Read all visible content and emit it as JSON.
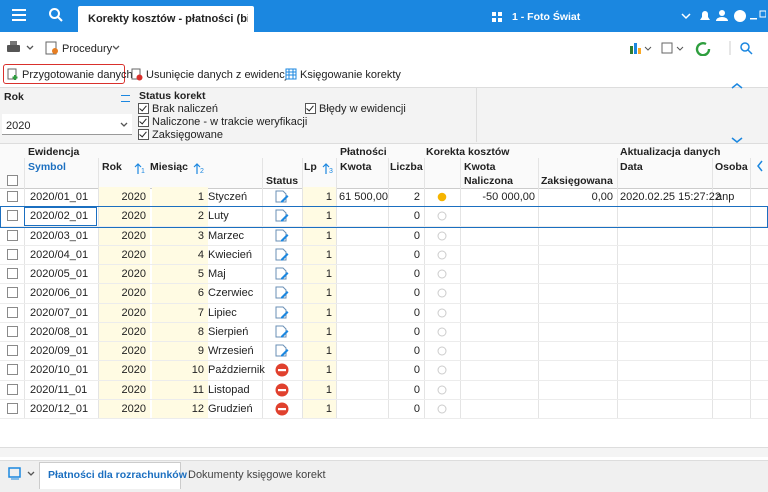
{
  "header": {
    "tab_title": "Korekty kosztów - płatności (biala",
    "company": "1 - Foto Świat"
  },
  "toolbar": {
    "procedures": "Procedury",
    "buttons": [
      "Przygotowanie danych",
      "Usunięcie danych z ewidencji",
      "Księgowanie korekty"
    ]
  },
  "filters": {
    "year_label": "Rok",
    "year_value": "2020",
    "status_label": "Status korekt",
    "status_options": [
      "Brak naliczeń",
      "Naliczone - w trakcie weryfikacji",
      "Zaksięgowane"
    ],
    "errors_option": "Błędy w ewidencji"
  },
  "table": {
    "group_headers": [
      "Ewidencja",
      "Płatności",
      "Korekta kosztów",
      "Aktualizacja danych"
    ],
    "columns": {
      "symbol": "Symbol",
      "year": "Rok",
      "month": "Miesiąc",
      "status": "Status",
      "lp": "Lp",
      "amount": "Kwota",
      "count": "Liczba",
      "correction_amount": "Kwota",
      "accrued": "Naliczona",
      "posted": "Zaksięgowana",
      "date": "Data",
      "person": "Osoba"
    },
    "sort_orders": [
      "1",
      "2",
      "3"
    ],
    "rows": [
      {
        "symbol": "2020/01_01",
        "year": 2020,
        "month_no": 1,
        "month": "Styczeń",
        "lp": 1,
        "amount": "61 500,00",
        "count": 2,
        "accrued": "-50 000,00",
        "posted": "0,00",
        "date": "2020.02.25 15:27:22",
        "person": "anp"
      },
      {
        "symbol": "2020/02_01",
        "year": 2020,
        "month_no": 2,
        "month": "Luty",
        "lp": 1,
        "count": 0
      },
      {
        "symbol": "2020/03_01",
        "year": 2020,
        "month_no": 3,
        "month": "Marzec",
        "lp": 1,
        "count": 0
      },
      {
        "symbol": "2020/04_01",
        "year": 2020,
        "month_no": 4,
        "month": "Kwiecień",
        "lp": 1,
        "count": 0
      },
      {
        "symbol": "2020/05_01",
        "year": 2020,
        "month_no": 5,
        "month": "Maj",
        "lp": 1,
        "count": 0
      },
      {
        "symbol": "2020/06_01",
        "year": 2020,
        "month_no": 6,
        "month": "Czerwiec",
        "lp": 1,
        "count": 0
      },
      {
        "symbol": "2020/07_01",
        "year": 2020,
        "month_no": 7,
        "month": "Lipiec",
        "lp": 1,
        "count": 0
      },
      {
        "symbol": "2020/08_01",
        "year": 2020,
        "month_no": 8,
        "month": "Sierpień",
        "lp": 1,
        "count": 0
      },
      {
        "symbol": "2020/09_01",
        "year": 2020,
        "month_no": 9,
        "month": "Wrzesień",
        "lp": 1,
        "count": 0
      },
      {
        "symbol": "2020/10_01",
        "year": 2020,
        "month_no": 10,
        "month": "Październik",
        "lp": 1,
        "count": 0
      },
      {
        "symbol": "2020/11_01",
        "year": 2020,
        "month_no": 11,
        "month": "Listopad",
        "lp": 1,
        "count": 0
      },
      {
        "symbol": "2020/12_01",
        "year": 2020,
        "month_no": 12,
        "month": "Grudzień",
        "lp": 1,
        "count": 0
      }
    ]
  },
  "tabs": [
    "Płatności dla rozrachunków",
    "Dokumenty księgowe korekt"
  ]
}
